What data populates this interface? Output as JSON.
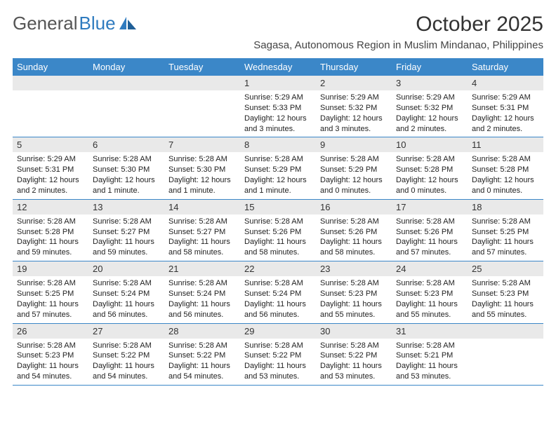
{
  "brand": {
    "text1": "General",
    "text2": "Blue"
  },
  "title": "October 2025",
  "subtitle": "Sagasa, Autonomous Region in Muslim Mindanao, Philippines",
  "colors": {
    "header_bg": "#3b87c8",
    "header_fg": "#ffffff",
    "daynum_bg": "#e9e9e9",
    "rule": "#3b87c8",
    "brand_blue": "#2f7bbf",
    "text": "#222222",
    "page_bg": "#ffffff"
  },
  "fonts": {
    "month_title_size": 30,
    "subtitle_size": 15,
    "weekday_size": 13,
    "daynum_size": 13,
    "body_size": 11
  },
  "weekdays": [
    "Sunday",
    "Monday",
    "Tuesday",
    "Wednesday",
    "Thursday",
    "Friday",
    "Saturday"
  ],
  "cells": [
    {
      "day": "",
      "sunrise": "",
      "sunset": "",
      "daylight": ""
    },
    {
      "day": "",
      "sunrise": "",
      "sunset": "",
      "daylight": ""
    },
    {
      "day": "",
      "sunrise": "",
      "sunset": "",
      "daylight": ""
    },
    {
      "day": "1",
      "sunrise": "Sunrise: 5:29 AM",
      "sunset": "Sunset: 5:33 PM",
      "daylight": "Daylight: 12 hours and 3 minutes."
    },
    {
      "day": "2",
      "sunrise": "Sunrise: 5:29 AM",
      "sunset": "Sunset: 5:32 PM",
      "daylight": "Daylight: 12 hours and 3 minutes."
    },
    {
      "day": "3",
      "sunrise": "Sunrise: 5:29 AM",
      "sunset": "Sunset: 5:32 PM",
      "daylight": "Daylight: 12 hours and 2 minutes."
    },
    {
      "day": "4",
      "sunrise": "Sunrise: 5:29 AM",
      "sunset": "Sunset: 5:31 PM",
      "daylight": "Daylight: 12 hours and 2 minutes."
    },
    {
      "day": "5",
      "sunrise": "Sunrise: 5:29 AM",
      "sunset": "Sunset: 5:31 PM",
      "daylight": "Daylight: 12 hours and 2 minutes."
    },
    {
      "day": "6",
      "sunrise": "Sunrise: 5:28 AM",
      "sunset": "Sunset: 5:30 PM",
      "daylight": "Daylight: 12 hours and 1 minute."
    },
    {
      "day": "7",
      "sunrise": "Sunrise: 5:28 AM",
      "sunset": "Sunset: 5:30 PM",
      "daylight": "Daylight: 12 hours and 1 minute."
    },
    {
      "day": "8",
      "sunrise": "Sunrise: 5:28 AM",
      "sunset": "Sunset: 5:29 PM",
      "daylight": "Daylight: 12 hours and 1 minute."
    },
    {
      "day": "9",
      "sunrise": "Sunrise: 5:28 AM",
      "sunset": "Sunset: 5:29 PM",
      "daylight": "Daylight: 12 hours and 0 minutes."
    },
    {
      "day": "10",
      "sunrise": "Sunrise: 5:28 AM",
      "sunset": "Sunset: 5:28 PM",
      "daylight": "Daylight: 12 hours and 0 minutes."
    },
    {
      "day": "11",
      "sunrise": "Sunrise: 5:28 AM",
      "sunset": "Sunset: 5:28 PM",
      "daylight": "Daylight: 12 hours and 0 minutes."
    },
    {
      "day": "12",
      "sunrise": "Sunrise: 5:28 AM",
      "sunset": "Sunset: 5:28 PM",
      "daylight": "Daylight: 11 hours and 59 minutes."
    },
    {
      "day": "13",
      "sunrise": "Sunrise: 5:28 AM",
      "sunset": "Sunset: 5:27 PM",
      "daylight": "Daylight: 11 hours and 59 minutes."
    },
    {
      "day": "14",
      "sunrise": "Sunrise: 5:28 AM",
      "sunset": "Sunset: 5:27 PM",
      "daylight": "Daylight: 11 hours and 58 minutes."
    },
    {
      "day": "15",
      "sunrise": "Sunrise: 5:28 AM",
      "sunset": "Sunset: 5:26 PM",
      "daylight": "Daylight: 11 hours and 58 minutes."
    },
    {
      "day": "16",
      "sunrise": "Sunrise: 5:28 AM",
      "sunset": "Sunset: 5:26 PM",
      "daylight": "Daylight: 11 hours and 58 minutes."
    },
    {
      "day": "17",
      "sunrise": "Sunrise: 5:28 AM",
      "sunset": "Sunset: 5:26 PM",
      "daylight": "Daylight: 11 hours and 57 minutes."
    },
    {
      "day": "18",
      "sunrise": "Sunrise: 5:28 AM",
      "sunset": "Sunset: 5:25 PM",
      "daylight": "Daylight: 11 hours and 57 minutes."
    },
    {
      "day": "19",
      "sunrise": "Sunrise: 5:28 AM",
      "sunset": "Sunset: 5:25 PM",
      "daylight": "Daylight: 11 hours and 57 minutes."
    },
    {
      "day": "20",
      "sunrise": "Sunrise: 5:28 AM",
      "sunset": "Sunset: 5:24 PM",
      "daylight": "Daylight: 11 hours and 56 minutes."
    },
    {
      "day": "21",
      "sunrise": "Sunrise: 5:28 AM",
      "sunset": "Sunset: 5:24 PM",
      "daylight": "Daylight: 11 hours and 56 minutes."
    },
    {
      "day": "22",
      "sunrise": "Sunrise: 5:28 AM",
      "sunset": "Sunset: 5:24 PM",
      "daylight": "Daylight: 11 hours and 56 minutes."
    },
    {
      "day": "23",
      "sunrise": "Sunrise: 5:28 AM",
      "sunset": "Sunset: 5:23 PM",
      "daylight": "Daylight: 11 hours and 55 minutes."
    },
    {
      "day": "24",
      "sunrise": "Sunrise: 5:28 AM",
      "sunset": "Sunset: 5:23 PM",
      "daylight": "Daylight: 11 hours and 55 minutes."
    },
    {
      "day": "25",
      "sunrise": "Sunrise: 5:28 AM",
      "sunset": "Sunset: 5:23 PM",
      "daylight": "Daylight: 11 hours and 55 minutes."
    },
    {
      "day": "26",
      "sunrise": "Sunrise: 5:28 AM",
      "sunset": "Sunset: 5:23 PM",
      "daylight": "Daylight: 11 hours and 54 minutes."
    },
    {
      "day": "27",
      "sunrise": "Sunrise: 5:28 AM",
      "sunset": "Sunset: 5:22 PM",
      "daylight": "Daylight: 11 hours and 54 minutes."
    },
    {
      "day": "28",
      "sunrise": "Sunrise: 5:28 AM",
      "sunset": "Sunset: 5:22 PM",
      "daylight": "Daylight: 11 hours and 54 minutes."
    },
    {
      "day": "29",
      "sunrise": "Sunrise: 5:28 AM",
      "sunset": "Sunset: 5:22 PM",
      "daylight": "Daylight: 11 hours and 53 minutes."
    },
    {
      "day": "30",
      "sunrise": "Sunrise: 5:28 AM",
      "sunset": "Sunset: 5:22 PM",
      "daylight": "Daylight: 11 hours and 53 minutes."
    },
    {
      "day": "31",
      "sunrise": "Sunrise: 5:28 AM",
      "sunset": "Sunset: 5:21 PM",
      "daylight": "Daylight: 11 hours and 53 minutes."
    },
    {
      "day": "",
      "sunrise": "",
      "sunset": "",
      "daylight": ""
    }
  ]
}
